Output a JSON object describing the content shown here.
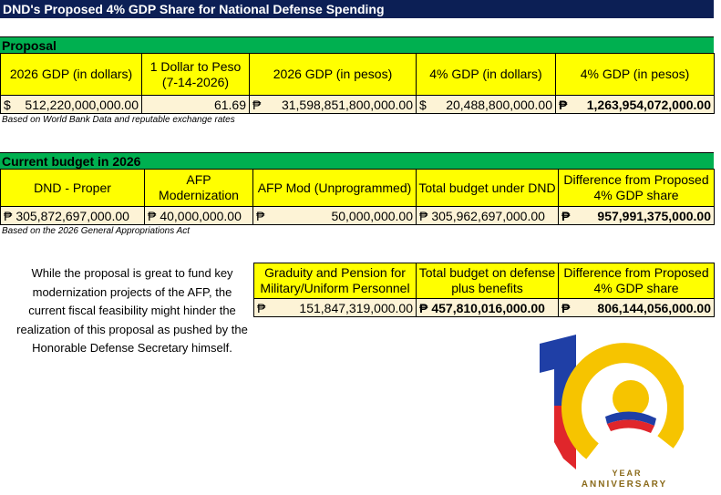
{
  "title": "DND's Proposed 4% GDP Share for National Defense Spending",
  "proposal": {
    "heading": "Proposal",
    "headers": [
      "2026 GDP (in dollars)",
      "1 Dollar to Peso (7-14-2026)",
      "2026 GDP (in pesos)",
      "4% GDP (in dollars)",
      "4% GDP (in pesos)"
    ],
    "row": [
      {
        "symbol": "$",
        "amount": "512,220,000,000.00"
      },
      {
        "amount": "61.69"
      },
      {
        "symbol": "₱",
        "amount": "31,598,851,800,000.00"
      },
      {
        "symbol": "$",
        "amount": "20,488,800,000.00"
      },
      {
        "symbol": "₱",
        "amount": "1,263,954,072,000.00"
      }
    ],
    "note": "Based on World Bank Data and reputable exchange rates"
  },
  "current_budget": {
    "heading": "Current budget in 2026",
    "headers": [
      "DND - Proper",
      "AFP Modernization",
      "AFP Mod (Unprogrammed)",
      "Total budget under DND",
      "Difference from Proposed 4% GDP share"
    ],
    "row": [
      {
        "symbol": "₱",
        "amount": "305,872,697,000.00"
      },
      {
        "symbol": "₱",
        "amount": "40,000,000.00"
      },
      {
        "symbol": "₱",
        "amount": "50,000,000.00"
      },
      {
        "symbol": "₱",
        "amount": "305,962,697,000.00"
      },
      {
        "symbol": "₱",
        "amount": "957,991,375,000.00"
      }
    ],
    "note": "Based on the 2026 General Appropriations Act"
  },
  "benefits": {
    "headers": [
      "Graduity and Pension for Military/Uniform Personnel",
      "Total budget on defense plus benefits",
      "Difference from Proposed 4% GDP share"
    ],
    "row": [
      {
        "symbol": "₱",
        "amount": "151,847,319,000.00"
      },
      {
        "symbol": "₱",
        "amount": "457,810,016,000.00"
      },
      {
        "symbol": "₱",
        "amount": "806,144,056,000.00"
      }
    ]
  },
  "commentary": [
    "While the proposal is great to fund key",
    "modernization projects of the AFP, the",
    "current fiscal feasibility might hinder the",
    "realization of this proposal as pushed by the",
    "Honorable Defense Secretary himself."
  ],
  "logo": {
    "line1": "YEAR",
    "line2": "ANNIVERSARY"
  }
}
